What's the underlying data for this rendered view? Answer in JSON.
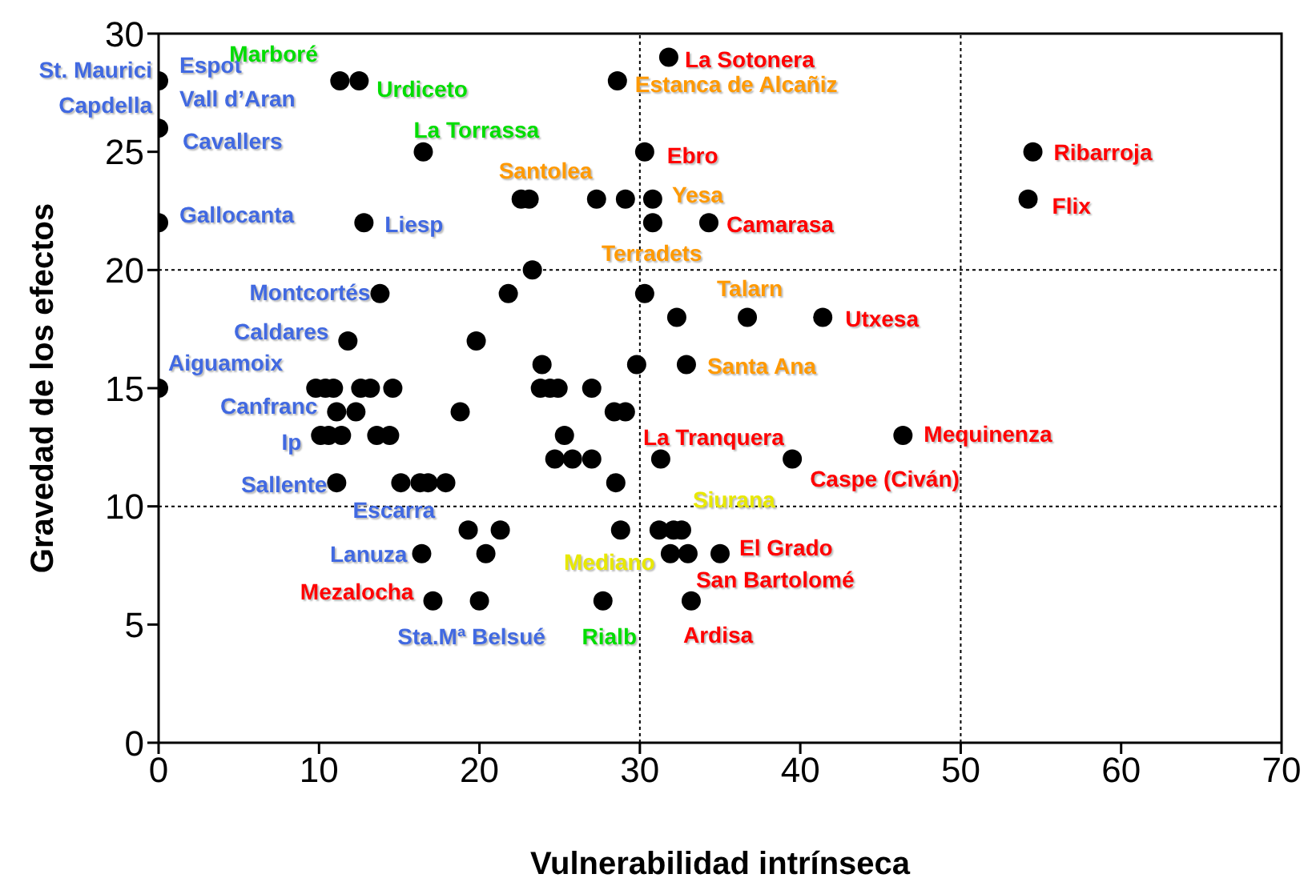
{
  "chart_data": {
    "type": "scatter",
    "xlabel": "Vulnerabilidad intrínseca",
    "ylabel": "Gravedad de los efectos",
    "color": "#000000",
    "marker": "circle",
    "x": [
      0,
      0,
      0,
      0,
      11.3,
      12.5,
      16.5,
      12.8,
      13.8,
      11.8,
      19.8,
      21.8,
      23.3,
      22.6,
      23.1,
      27.3,
      29.1,
      30.8,
      30.8,
      34.3,
      30.3,
      28.6,
      31.8,
      30.3,
      32.3,
      36.7,
      41.4,
      23.9,
      29.8,
      32.9,
      9.8,
      10.4,
      10.9,
      12.6,
      13.2,
      14.6,
      11.1,
      12.3,
      18.8,
      10.1,
      10.6,
      11.4,
      13.6,
      14.4,
      11.1,
      15.1,
      16.3,
      16.8,
      17.9,
      19.3,
      21.3,
      28.8,
      31.2,
      32.1,
      32.6,
      16.4,
      20.4,
      31.9,
      33.0,
      35.0,
      17.1,
      20.0,
      27.7,
      33.2,
      23.8,
      24.4,
      24.9,
      27.0,
      28.4,
      29.1,
      25.3,
      24.7,
      25.8,
      27.0,
      31.3,
      39.5,
      28.5,
      54.5,
      54.2,
      46.4
    ],
    "values": [
      28,
      26,
      22,
      15,
      28,
      28,
      25,
      22,
      19,
      17,
      17,
      19,
      20,
      23,
      23,
      23,
      23,
      23,
      22,
      22,
      25,
      28,
      29,
      19,
      18,
      18,
      18,
      16,
      16,
      16,
      15,
      15,
      15,
      15,
      15,
      15,
      14,
      14,
      14,
      13,
      13,
      13,
      13,
      13,
      11,
      11,
      11,
      11,
      11,
      9,
      9,
      9,
      9,
      9,
      9,
      8,
      8,
      8,
      8,
      8,
      6,
      6,
      6,
      6,
      15,
      15,
      15,
      15,
      14,
      14,
      13,
      12,
      12,
      12,
      12,
      12,
      11,
      25,
      23,
      13
    ],
    "xlim": [
      0,
      70
    ],
    "xticks": [
      0,
      10,
      20,
      30,
      40,
      50,
      60,
      70
    ],
    "ylim": [
      0,
      30
    ],
    "yticks": [
      0,
      5,
      10,
      15,
      20,
      25,
      30
    ],
    "grid": false,
    "ref_lines": [
      {
        "axis": "x",
        "value": 30,
        "color": "#000000",
        "line_style": "dotted"
      },
      {
        "axis": "x",
        "value": 50,
        "color": "#000000",
        "line_style": "dotted"
      },
      {
        "axis": "y",
        "value": 10,
        "color": "#000000",
        "line_style": "dotted"
      },
      {
        "axis": "y",
        "value": 20,
        "color": "#000000",
        "line_style": "dotted"
      }
    ],
    "annotations": [
      {
        "text": "St. Maurici",
        "x": 0,
        "y": 28
      },
      {
        "text": "Capdella",
        "x": 0,
        "y": 28
      },
      {
        "text": "Espot",
        "x": 0,
        "y": 28
      },
      {
        "text": "Vall d’Aran",
        "x": 0,
        "y": 28
      },
      {
        "text": "Cavallers",
        "x": 0,
        "y": 26
      },
      {
        "text": "Gallocanta",
        "x": 0,
        "y": 22
      },
      {
        "text": "Aiguamoix",
        "x": 0,
        "y": 15
      },
      {
        "text": "Marboré",
        "x": 11.3,
        "y": 28
      },
      {
        "text": "Urdiceto",
        "x": 12.5,
        "y": 28
      },
      {
        "text": "La Torrassa",
        "x": 16.5,
        "y": 25
      },
      {
        "text": "Liesp",
        "x": 12.8,
        "y": 22
      },
      {
        "text": "Montcortés",
        "x": 13.8,
        "y": 19
      },
      {
        "text": "Caldares",
        "x": 11.8,
        "y": 17
      },
      {
        "text": "Canfranc",
        "x": 11.1,
        "y": 14
      },
      {
        "text": "Ip",
        "x": 10.1,
        "y": 13
      },
      {
        "text": "Sallente",
        "x": 11.1,
        "y": 11
      },
      {
        "text": "Escarra",
        "x": 15.1,
        "y": 11
      },
      {
        "text": "Lanuza",
        "x": 16.4,
        "y": 8
      },
      {
        "text": "Mezalocha",
        "x": 17.1,
        "y": 6
      },
      {
        "text": "Sta.Mª Belsué",
        "x": 20.0,
        "y": 6
      },
      {
        "text": "Rialb",
        "x": 27.7,
        "y": 6
      },
      {
        "text": "Ardisa",
        "x": 33.2,
        "y": 6
      },
      {
        "text": "Mediano",
        "x": 28.8,
        "y": 9
      },
      {
        "text": "Siurana",
        "x": 32.1,
        "y": 9
      },
      {
        "text": "El Grado",
        "x": 35.0,
        "y": 8
      },
      {
        "text": "San Bartolomé",
        "x": 33.0,
        "y": 8
      },
      {
        "text": "La Tranquera",
        "x": 31.3,
        "y": 12
      },
      {
        "text": "Caspe (Civán)",
        "x": 39.5,
        "y": 12
      },
      {
        "text": "Mequinenza",
        "x": 46.4,
        "y": 13
      },
      {
        "text": "Santa Ana",
        "x": 32.9,
        "y": 16
      },
      {
        "text": "Utxesa",
        "x": 41.4,
        "y": 18
      },
      {
        "text": "Talarn",
        "x": 36.7,
        "y": 18
      },
      {
        "text": "Terradets",
        "x": 30.8,
        "y": 22
      },
      {
        "text": "Camarasa",
        "x": 34.3,
        "y": 22
      },
      {
        "text": "Yesa",
        "x": 30.8,
        "y": 23
      },
      {
        "text": "Ebro",
        "x": 30.3,
        "y": 25
      },
      {
        "text": "Santolea",
        "x": 23.1,
        "y": 23
      },
      {
        "text": "Estanca de Alcañiz",
        "x": 28.6,
        "y": 28
      },
      {
        "text": "La Sotonera",
        "x": 31.8,
        "y": 29
      },
      {
        "text": "Ribarroja",
        "x": 54.5,
        "y": 25
      },
      {
        "text": "Flix",
        "x": 54.2,
        "y": 23
      }
    ]
  }
}
